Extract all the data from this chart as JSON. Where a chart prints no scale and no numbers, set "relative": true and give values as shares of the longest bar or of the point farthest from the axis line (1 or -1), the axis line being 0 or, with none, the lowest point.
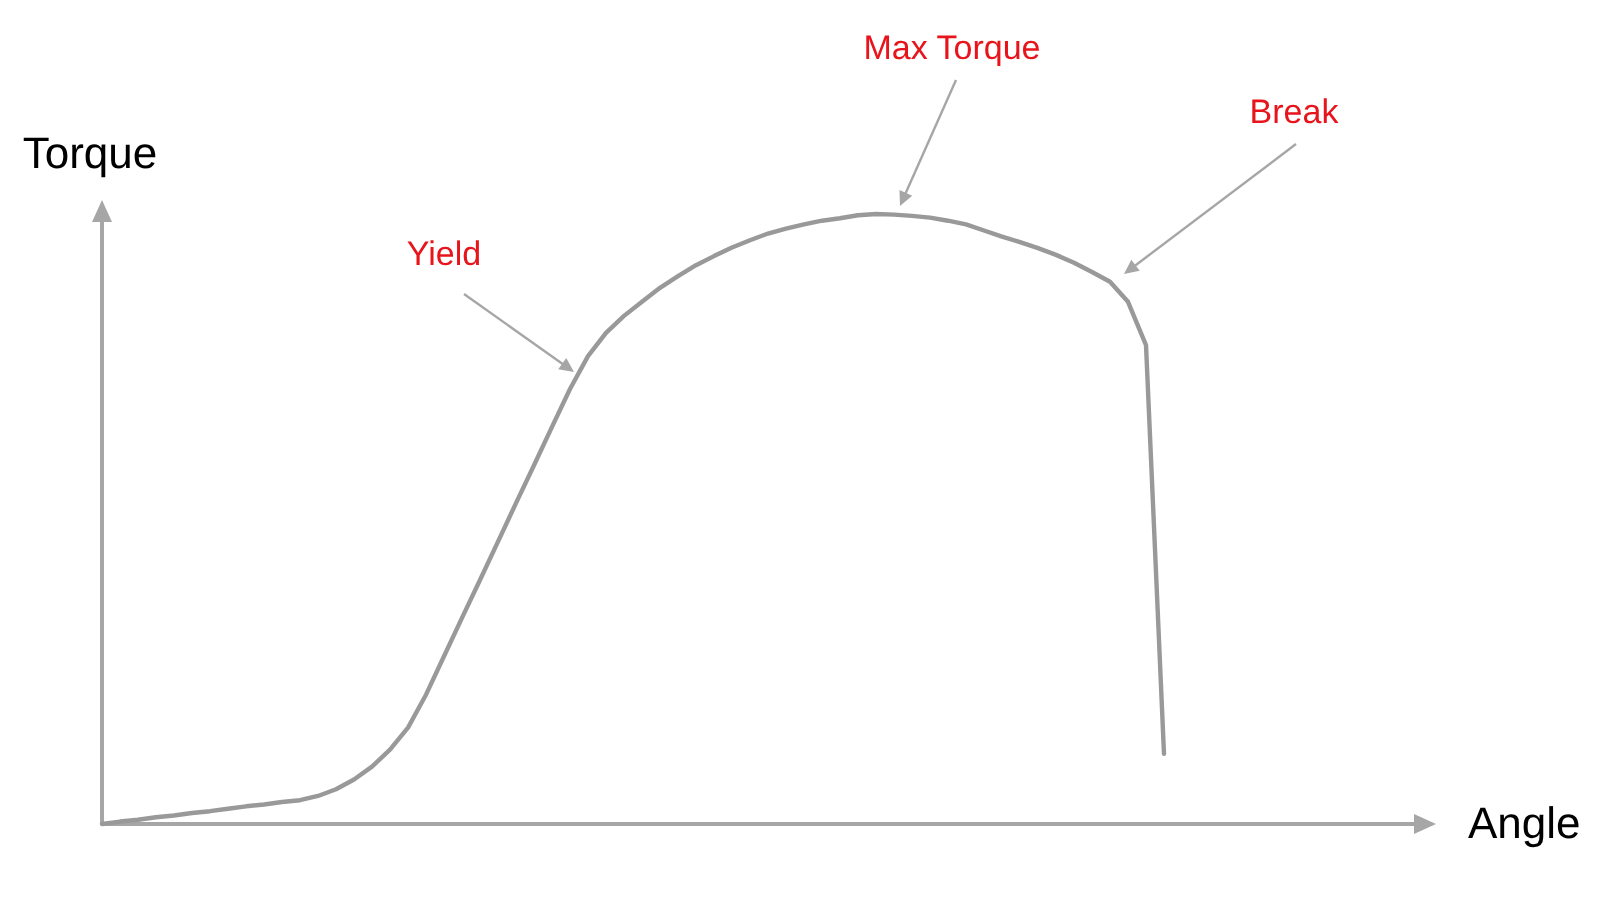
{
  "chart_data": {
    "type": "line",
    "xlabel": "Angle",
    "ylabel": "Torque",
    "relative": true,
    "marker": "none",
    "color": "#999999",
    "categories": [
      null,
      null,
      null,
      null,
      null,
      null,
      null,
      null,
      null,
      null,
      null,
      null,
      null,
      null,
      null,
      null,
      null,
      null,
      null,
      null,
      null,
      null,
      null,
      null,
      null,
      null,
      null,
      null,
      null,
      null,
      null,
      null,
      null,
      null,
      null,
      null,
      null,
      null,
      null,
      null,
      null,
      null,
      null,
      null,
      null,
      null,
      null,
      null,
      null,
      null,
      null,
      null,
      null,
      null,
      null,
      null,
      null,
      null,
      null,
      null,
      null,
      null,
      null,
      null,
      null,
      null,
      null,
      null,
      null,
      null,
      null,
      null,
      null,
      null
    ],
    "values": [
      0,
      0.004,
      0.007,
      0.011,
      0.014,
      0.018,
      0.021,
      0.025,
      0.029,
      0.032,
      0.036,
      0.039,
      0.046,
      0.057,
      0.073,
      0.094,
      0.122,
      0.158,
      0.212,
      0.275,
      0.338,
      0.4,
      0.463,
      0.526,
      0.588,
      0.651,
      0.713,
      0.767,
      0.805,
      0.833,
      0.856,
      0.879,
      0.898,
      0.916,
      0.931,
      0.945,
      0.957,
      0.968,
      0.976,
      0.983,
      0.989,
      0.993,
      0.998,
      1,
      0.999,
      0.997,
      0.994,
      0.989,
      0.983,
      0.973,
      0.963,
      0.954,
      0.944,
      0.933,
      0.92,
      0.905,
      0.889,
      0.856,
      0.785,
      0.115,
      null,
      null,
      null,
      null,
      null,
      null,
      null,
      null,
      null,
      null,
      null,
      null,
      null,
      null
    ],
    "annotations": [
      "Yield",
      "Max Torque",
      "Break"
    ]
  }
}
